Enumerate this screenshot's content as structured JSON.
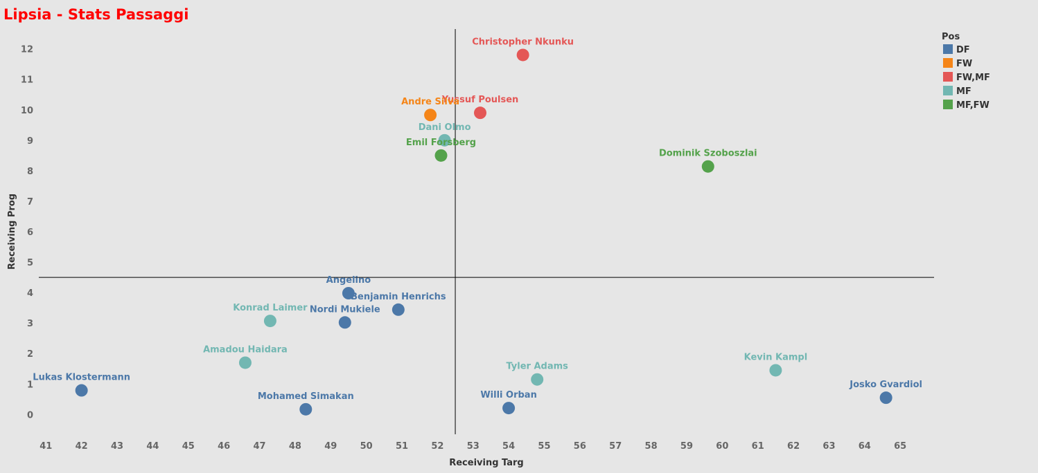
{
  "chart_data": {
    "type": "scatter",
    "title": "Lipsia - Stats Passaggi",
    "xlabel": "Receiving Targ",
    "ylabel": "Receiving Prog",
    "xlim": [
      40.8,
      65.95
    ],
    "ylim": [
      -0.65,
      12.65
    ],
    "xticks": [
      "41",
      "42",
      "43",
      "44",
      "45",
      "46",
      "47",
      "48",
      "49",
      "50",
      "51",
      "52",
      "53",
      "54",
      "55",
      "56",
      "57",
      "58",
      "59",
      "60",
      "61",
      "62",
      "63",
      "64",
      "65"
    ],
    "yticks": [
      "0",
      "1",
      "2",
      "3",
      "4",
      "5",
      "6",
      "7",
      "8",
      "9",
      "10",
      "11",
      "12"
    ],
    "reference_lines": {
      "x": 52.5,
      "y": 4.5
    },
    "grid": false,
    "legend": {
      "title": "Pos",
      "placement": "top-right",
      "entries": [
        {
          "name": "DF",
          "color": "#4c78a8"
        },
        {
          "name": "FW",
          "color": "#f58518"
        },
        {
          "name": "FW,MF",
          "color": "#e45756"
        },
        {
          "name": "MF",
          "color": "#72b7b2"
        },
        {
          "name": "MF,FW",
          "color": "#54a24b"
        }
      ]
    },
    "points": [
      {
        "label": "Christopher Nkunku",
        "pos": "FW,MF",
        "x": 54.4,
        "y": 11.8
      },
      {
        "label": "Yussuf Poulsen",
        "pos": "FW,MF",
        "x": 53.2,
        "y": 9.9
      },
      {
        "label": "Andre Silva",
        "pos": "FW",
        "x": 51.8,
        "y": 9.83
      },
      {
        "label": "Dani Olmo",
        "pos": "MF",
        "x": 52.2,
        "y": 9.0
      },
      {
        "label": "Emil Forsberg",
        "pos": "MF,FW",
        "x": 52.1,
        "y": 8.5
      },
      {
        "label": "Dominik Szoboszlai",
        "pos": "MF,FW",
        "x": 59.6,
        "y": 8.14
      },
      {
        "label": "Angelino",
        "pos": "DF",
        "x": 49.5,
        "y": 3.98
      },
      {
        "label": "Benjamin Henrichs",
        "pos": "DF",
        "x": 50.9,
        "y": 3.44
      },
      {
        "label": "Nordi Mukiele",
        "pos": "DF",
        "x": 49.4,
        "y": 3.02
      },
      {
        "label": "Konrad Laimer",
        "pos": "MF",
        "x": 47.3,
        "y": 3.07
      },
      {
        "label": "Amadou Haidara",
        "pos": "MF",
        "x": 46.6,
        "y": 1.7
      },
      {
        "label": "Lukas Klostermann",
        "pos": "DF",
        "x": 42.0,
        "y": 0.79
      },
      {
        "label": "Mohamed Simakan",
        "pos": "DF",
        "x": 48.3,
        "y": 0.17
      },
      {
        "label": "Willi Orban",
        "pos": "DF",
        "x": 54.0,
        "y": 0.21
      },
      {
        "label": "Tyler Adams",
        "pos": "MF",
        "x": 54.8,
        "y": 1.15
      },
      {
        "label": "Kevin Kampl",
        "pos": "MF",
        "x": 61.5,
        "y": 1.45
      },
      {
        "label": "Josko Gvardiol",
        "pos": "DF",
        "x": 64.6,
        "y": 0.55
      }
    ]
  }
}
